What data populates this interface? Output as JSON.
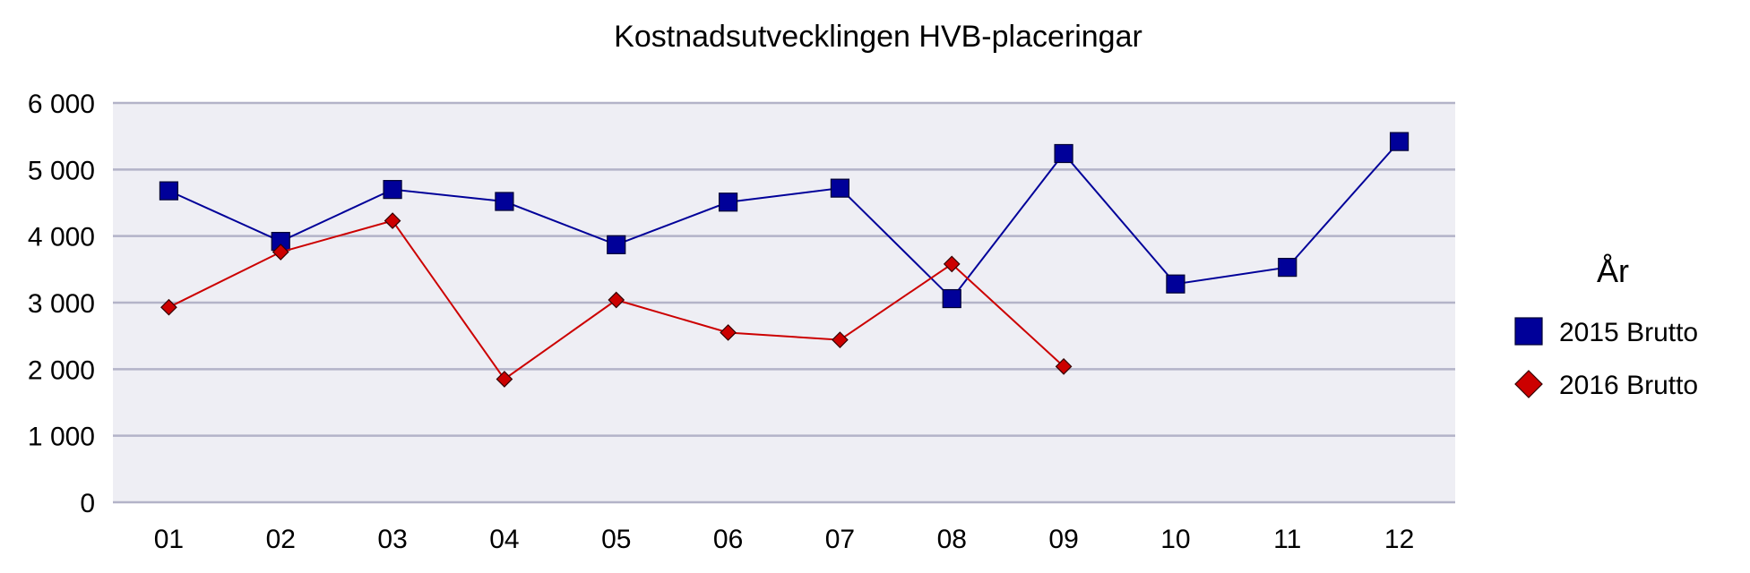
{
  "chart_data": {
    "type": "line",
    "title": "Kostnadsutvecklingen HVB-placeringar",
    "xlabel": "",
    "ylabel": "",
    "categories": [
      "01",
      "02",
      "03",
      "04",
      "05",
      "06",
      "07",
      "08",
      "09",
      "10",
      "11",
      "12"
    ],
    "yticks": [
      "0",
      "1 000",
      "2 000",
      "3 000",
      "4 000",
      "5 000",
      "6 000"
    ],
    "ylim": [
      0,
      6000
    ],
    "grid": true,
    "legend": {
      "title": "År",
      "position": "right"
    },
    "series": [
      {
        "name": "2015 Brutto",
        "color": "#000099",
        "marker": "square",
        "values": [
          4680,
          3920,
          4700,
          4520,
          3870,
          4510,
          4720,
          3060,
          5240,
          3280,
          3530,
          5420
        ]
      },
      {
        "name": "2016 Brutto",
        "color": "#cc0000",
        "marker": "diamond",
        "values": [
          2930,
          3760,
          4230,
          1850,
          3040,
          2550,
          2440,
          3580,
          2040,
          null,
          null,
          null
        ]
      }
    ]
  }
}
